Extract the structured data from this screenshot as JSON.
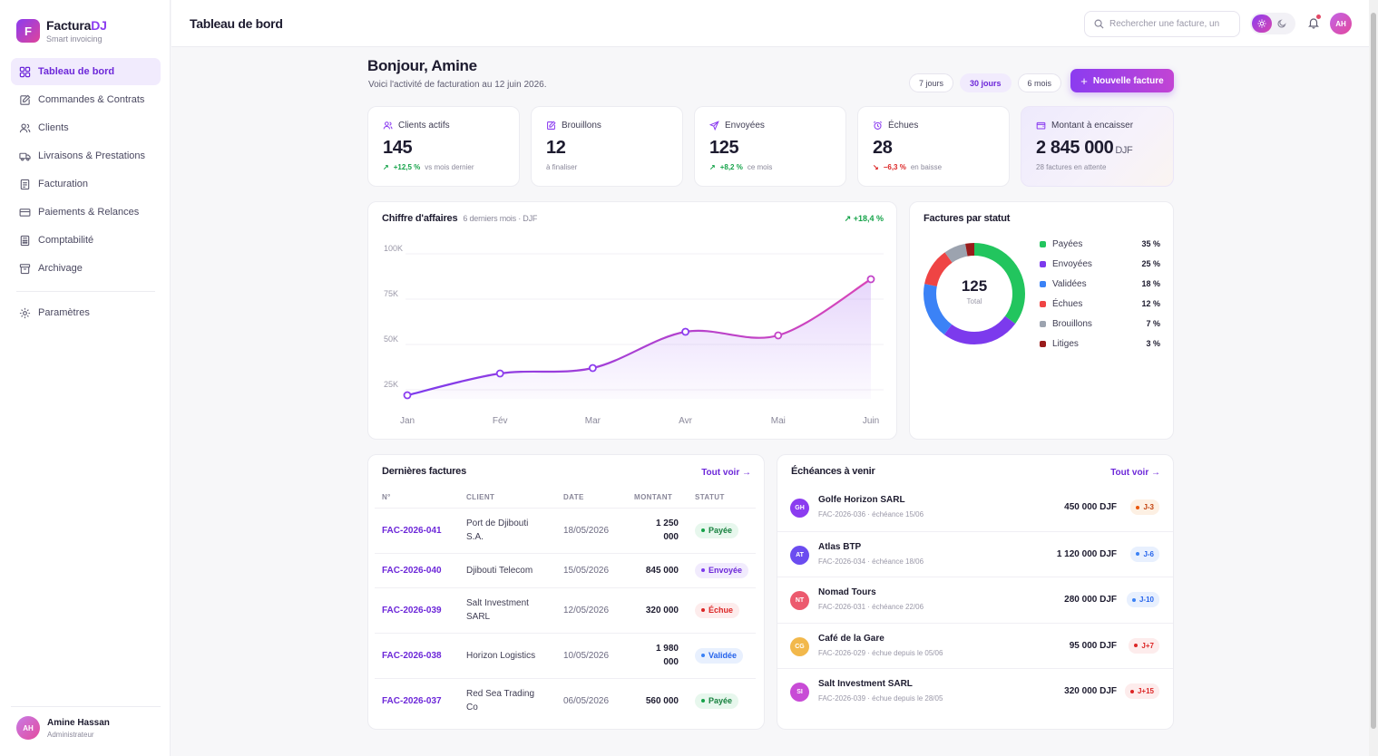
{
  "brand": {
    "logo_letter": "F",
    "name_main": "Factura",
    "name_accent": "DJ",
    "tagline": "Smart invoicing"
  },
  "nav": [
    {
      "label": "Tableau de bord",
      "icon": "grid-icon",
      "active": true
    },
    {
      "label": "Commandes & Contrats",
      "icon": "edit-doc-icon"
    },
    {
      "label": "Clients",
      "icon": "users-icon"
    },
    {
      "label": "Livraisons & Prestations",
      "icon": "truck-icon"
    },
    {
      "label": "Facturation",
      "icon": "document-icon"
    },
    {
      "label": "Paiements & Relances",
      "icon": "credit-card-icon"
    },
    {
      "label": "Comptabilité",
      "icon": "calculator-icon"
    },
    {
      "label": "Archivage",
      "icon": "archive-icon"
    }
  ],
  "settings_label": "Paramètres",
  "user": {
    "initials": "AH",
    "name": "Amine Hassan",
    "role": "Administrateur"
  },
  "topbar": {
    "title": "Tableau de bord",
    "search_placeholder": "Rechercher une facture, un",
    "avatar_initials": "AH"
  },
  "header": {
    "greeting": "Bonjour, Amine",
    "subtitle": "Voici l'activité de facturation au 12 juin 2026.",
    "ranges": [
      "7 jours",
      "30 jours",
      "6 mois"
    ],
    "active_range": "30 jours",
    "new_invoice": "Nouvelle facture"
  },
  "kpis": [
    {
      "label": "Clients actifs",
      "value": "145",
      "delta": "+12,5 %",
      "delta_dir": "up",
      "note": "vs mois dernier"
    },
    {
      "label": "Brouillons",
      "value": "12",
      "delta": "",
      "note": "à finaliser"
    },
    {
      "label": "Envoyées",
      "value": "125",
      "delta": "+8,2 %",
      "delta_dir": "up",
      "note": "ce mois"
    },
    {
      "label": "Échues",
      "value": "28",
      "delta": "−6,3 %",
      "delta_dir": "down",
      "note": "en baisse"
    },
    {
      "label": "Montant à encaisser",
      "value": "2 845 000",
      "unit": "DJF",
      "delta": "",
      "note": "28 factures en attente"
    }
  ],
  "revenue": {
    "title": "Chiffre d'affaires",
    "subtitle": "6 derniers mois · DJF",
    "trend": "+18,4 %"
  },
  "status_card": {
    "title": "Factures par statut",
    "total": "125",
    "total_label": "Total"
  },
  "recent": {
    "title": "Dernières factures",
    "see_all": "Tout voir →",
    "columns": [
      "N°",
      "CLIENT",
      "DATE",
      "MONTANT",
      "STATUT"
    ],
    "rows": [
      {
        "id": "FAC-2026-041",
        "client_l1": "Port de Djibouti",
        "client_l2": "S.A.",
        "date": "18/05/2026",
        "amount_l1": "1 250",
        "amount_l2": "000",
        "status": "Payée"
      },
      {
        "id": "FAC-2026-040",
        "client_l1": "Djibouti Telecom",
        "client_l2": "",
        "date": "15/05/2026",
        "amount_l1": "845 000",
        "amount_l2": "",
        "status": "Envoyée"
      },
      {
        "id": "FAC-2026-039",
        "client_l1": "Salt Investment",
        "client_l2": "SARL",
        "date": "12/05/2026",
        "amount_l1": "320 000",
        "amount_l2": "",
        "status": "Échue"
      },
      {
        "id": "FAC-2026-038",
        "client_l1": "Horizon Logistics",
        "client_l2": "",
        "date": "10/05/2026",
        "amount_l1": "1 980",
        "amount_l2": "000",
        "status": "Validée"
      },
      {
        "id": "FAC-2026-037",
        "client_l1": "Red Sea Trading",
        "client_l2": "Co",
        "date": "06/05/2026",
        "amount_l1": "560 000",
        "amount_l2": "",
        "status": "Payée"
      }
    ]
  },
  "upcoming": {
    "title": "Échéances à venir",
    "see_all": "Tout voir →",
    "rows": [
      {
        "initials": "GH",
        "name": "Golfe Horizon SARL",
        "meta": "FAC-2026-036 · échéance 15/06",
        "amount": "450 000 DJF",
        "badge": "J-3",
        "tone": "orange",
        "color": "#8b3cf0"
      },
      {
        "initials": "AT",
        "name": "Atlas BTP",
        "meta": "FAC-2026-034 · échéance 18/06",
        "amount": "1 120 000 DJF",
        "badge": "J-6",
        "tone": "blue",
        "color": "#6b4cf0"
      },
      {
        "initials": "NT",
        "name": "Nomad Tours",
        "meta": "FAC-2026-031 · échéance 22/06",
        "amount": "280 000 DJF",
        "badge": "J-10",
        "tone": "blue",
        "color": "#ec5a6e"
      },
      {
        "initials": "CG",
        "name": "Café de la Gare",
        "meta": "FAC-2026-029 · échue depuis le 05/06",
        "amount": "95 000 DJF",
        "badge": "J+7",
        "tone": "red",
        "color": "#f2b84b"
      },
      {
        "initials": "SI",
        "name": "Salt Investment SARL",
        "meta": "FAC-2026-039 · échue depuis le 28/05",
        "amount": "320 000 DJF",
        "badge": "J+15",
        "tone": "red",
        "color": "#c84bd6"
      }
    ]
  },
  "chart_data": [
    {
      "type": "area",
      "title": "Chiffre d'affaires",
      "categories": [
        "Jan",
        "Fév",
        "Mar",
        "Avr",
        "Mai",
        "Juin"
      ],
      "values": [
        22000,
        34000,
        37000,
        57000,
        55000,
        86000
      ],
      "ylim": [
        20000,
        100000
      ],
      "yticks": [
        {
          "value": 25000,
          "label": "25K"
        },
        {
          "value": 50000,
          "label": "50K"
        },
        {
          "value": 75000,
          "label": "75K"
        },
        {
          "value": 100000,
          "label": "100K"
        }
      ],
      "grid": true,
      "color": "#8b3cf0"
    },
    {
      "type": "pie",
      "title": "Factures par statut",
      "series": [
        {
          "name": "Payées",
          "value": 35,
          "label": "35 %",
          "color": "#22c55e"
        },
        {
          "name": "Envoyées",
          "value": 25,
          "label": "25 %",
          "color": "#7c3aed"
        },
        {
          "name": "Validées",
          "value": 18,
          "label": "18 %",
          "color": "#3b82f6"
        },
        {
          "name": "Échues",
          "value": 12,
          "label": "12 %",
          "color": "#ef4444"
        },
        {
          "name": "Brouillons",
          "value": 7,
          "label": "7 %",
          "color": "#9ca3af"
        },
        {
          "name": "Litiges",
          "value": 3,
          "label": "3 %",
          "color": "#991b1b"
        }
      ]
    }
  ]
}
